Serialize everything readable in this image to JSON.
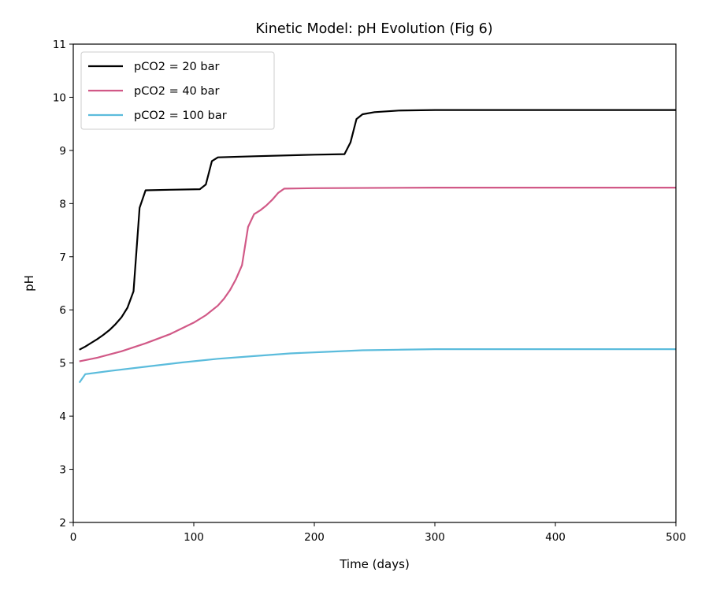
{
  "chart_data": {
    "type": "line",
    "title": "Kinetic Model: pH Evolution (Fig 6)",
    "xlabel": "Time (days)",
    "ylabel": "pH",
    "xlim": [
      0,
      500
    ],
    "ylim": [
      2,
      11
    ],
    "xticks": [
      0,
      100,
      200,
      300,
      400,
      500
    ],
    "yticks": [
      2,
      3,
      4,
      5,
      6,
      7,
      8,
      9,
      10,
      11
    ],
    "grid": false,
    "legend_position": "top-left",
    "series": [
      {
        "name": "pCO2 = 20 bar",
        "color": "#000000",
        "x": [
          5,
          10,
          15,
          20,
          25,
          30,
          35,
          40,
          45,
          50,
          55,
          60,
          80,
          105,
          110,
          115,
          120,
          150,
          200,
          225,
          230,
          235,
          240,
          250,
          270,
          300,
          500
        ],
        "y": [
          5.25,
          5.31,
          5.38,
          5.45,
          5.53,
          5.62,
          5.73,
          5.86,
          6.04,
          6.35,
          7.92,
          8.25,
          8.26,
          8.27,
          8.36,
          8.8,
          8.87,
          8.89,
          8.92,
          8.93,
          9.15,
          9.59,
          9.68,
          9.72,
          9.75,
          9.76,
          9.76
        ]
      },
      {
        "name": "pCO2 = 40 bar",
        "color": "#d15987",
        "x": [
          5,
          20,
          40,
          60,
          80,
          100,
          110,
          120,
          125,
          130,
          135,
          140,
          145,
          150,
          155,
          160,
          165,
          170,
          175,
          200,
          300,
          500
        ],
        "y": [
          5.03,
          5.1,
          5.22,
          5.37,
          5.54,
          5.76,
          5.9,
          6.08,
          6.21,
          6.37,
          6.58,
          6.84,
          7.56,
          7.8,
          7.87,
          7.96,
          8.07,
          8.2,
          8.28,
          8.29,
          8.3,
          8.3
        ]
      },
      {
        "name": "pCO2 = 100 bar",
        "color": "#5bbcdc",
        "x": [
          5,
          10,
          30,
          60,
          90,
          120,
          150,
          180,
          210,
          240,
          270,
          300,
          350,
          400,
          500
        ],
        "y": [
          4.63,
          4.79,
          4.85,
          4.93,
          5.01,
          5.08,
          5.13,
          5.18,
          5.21,
          5.24,
          5.25,
          5.26,
          5.26,
          5.26,
          5.26
        ]
      }
    ]
  }
}
